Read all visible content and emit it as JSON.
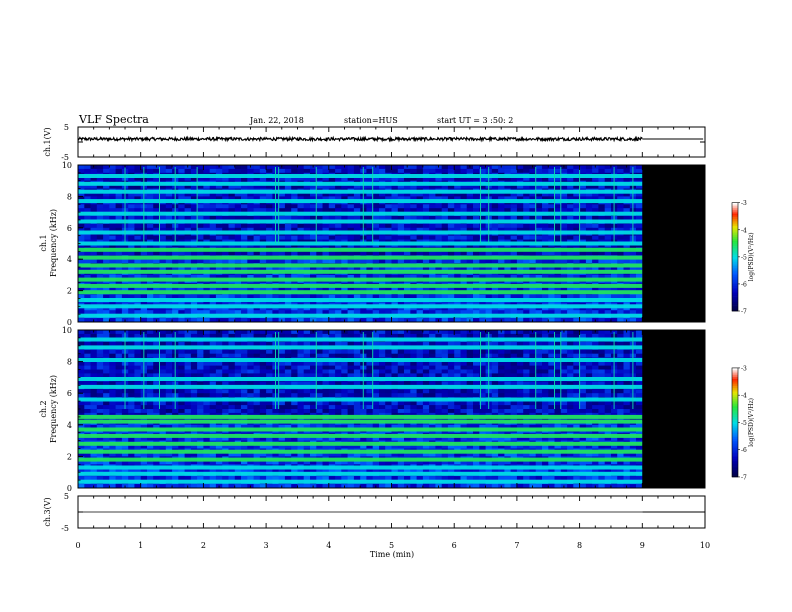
{
  "header": {
    "title": "VLF Spectra",
    "date": "Jan. 22, 2018",
    "station": "station=HUS",
    "start": "start UT =  3 :50: 2"
  },
  "colors": {
    "background": "#ffffff",
    "frame": "#000000",
    "spectrogram_empty": "#000000"
  },
  "chart_data": [
    {
      "type": "line",
      "name": "waveform-ch1",
      "ylabel": "ch.1(V)",
      "ylim": [
        -5,
        5
      ],
      "yticks": [
        "5",
        "-5"
      ],
      "xlim": [
        0,
        10
      ],
      "data_end_min": 9.0,
      "level": 1.0,
      "noise_amplitude": 0.5,
      "after_data_level": 1.0
    },
    {
      "type": "heatmap",
      "name": "spectrogram-ch1",
      "ylabel_line1": "ch.1",
      "ylabel_line2": "Frequency (kHz)",
      "ylim": [
        0,
        10
      ],
      "yticks": [
        "0",
        "2",
        "4",
        "6",
        "8",
        "10"
      ],
      "xlim": [
        0,
        10
      ],
      "data_end_min": 9.0,
      "colorbar": {
        "label": "log(PSD)(V²/Hz)",
        "range": [
          -7,
          -3
        ],
        "ticks": [
          "-3",
          "-4",
          "-5",
          "-6",
          "-7"
        ]
      },
      "bands_khz": [
        0.4,
        1.0,
        1.4,
        1.9,
        2.3,
        2.7,
        3.2,
        3.6,
        4.1,
        4.6,
        5.0,
        5.7,
        6.4,
        6.9,
        7.7,
        8.3,
        8.8,
        9.3
      ],
      "spikes_min": [
        0.75,
        1.05,
        1.3,
        1.55,
        1.9,
        3.15,
        3.2,
        3.8,
        4.55,
        4.7,
        6.42,
        6.55,
        7.3,
        7.6,
        7.7,
        8.0,
        8.55,
        8.85
      ]
    },
    {
      "type": "heatmap",
      "name": "spectrogram-ch2",
      "ylabel_line1": "ch.2",
      "ylabel_line2": "Frequency (kHz)",
      "ylim": [
        0,
        10
      ],
      "yticks": [
        "0",
        "2",
        "4",
        "6",
        "8",
        "10"
      ],
      "xlim": [
        0,
        10
      ],
      "data_end_min": 9.0,
      "colorbar": {
        "label": "log(PSD)(V²/Hz)",
        "range": [
          -7,
          -3
        ],
        "ticks": [
          "-3",
          "-4",
          "-5",
          "-6",
          "-7"
        ]
      },
      "bands_khz": [
        0.4,
        0.9,
        1.3,
        1.8,
        2.3,
        2.8,
        3.3,
        3.7,
        4.2,
        4.5,
        5.6,
        6.4,
        6.9,
        8.1,
        8.9,
        9.4
      ],
      "spikes_min": [
        0.75,
        1.05,
        1.3,
        1.55,
        3.15,
        3.2,
        3.8,
        4.55,
        4.7,
        6.42,
        6.55,
        7.3,
        7.6,
        7.7,
        8.0,
        8.55,
        8.85
      ]
    },
    {
      "type": "line",
      "name": "waveform-ch3",
      "ylabel": "ch.3(V)",
      "ylim": [
        -5,
        5
      ],
      "yticks": [
        "5",
        "-5"
      ],
      "xlim": [
        0,
        10
      ],
      "data_end_min": 9.0,
      "level": 0.0,
      "noise_amplitude": 0.0,
      "after_data_level": 0.0
    }
  ],
  "xaxis": {
    "label": "Time (min)",
    "ticks": [
      "0",
      "1",
      "2",
      "3",
      "4",
      "5",
      "6",
      "7",
      "8",
      "9",
      "10"
    ]
  }
}
